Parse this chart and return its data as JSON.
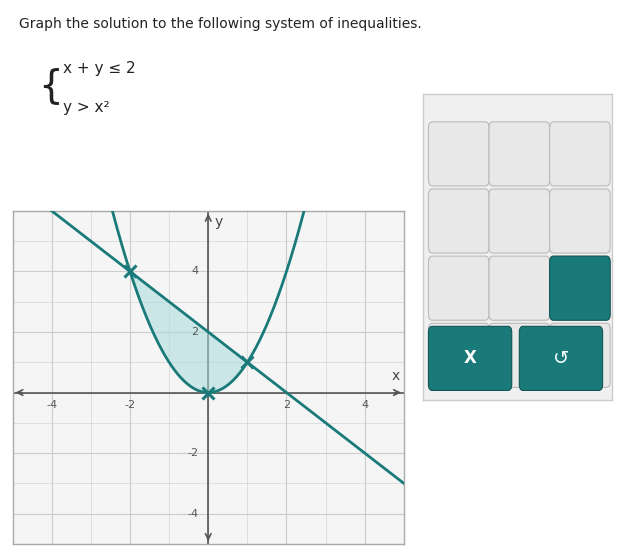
{
  "xlim": [
    -5,
    5
  ],
  "ylim": [
    -5,
    6
  ],
  "xtick_vals": [
    -4,
    -2,
    2,
    4
  ],
  "ytick_vals": [
    -4,
    -2,
    2,
    4
  ],
  "line_color": "#1a7a7a",
  "parabola_color": "#1a7a7a",
  "shade_color": "#a8dada",
  "shade_alpha": 0.55,
  "line_width": 2.0,
  "intersection_points": [
    [
      -2,
      4
    ],
    [
      1,
      1
    ]
  ],
  "vertex": [
    0,
    0
  ],
  "background_color": "#ffffff",
  "plot_bg_color": "#f5f5f5",
  "grid_color": "#cccccc",
  "axis_color": "#555555",
  "marker_color": "#1a7a7a",
  "marker_size": 9,
  "title_text": "Graph the solution to the following system of inequalities.",
  "ineq1": "x + y ≤ 2",
  "ineq2": "y > x²"
}
